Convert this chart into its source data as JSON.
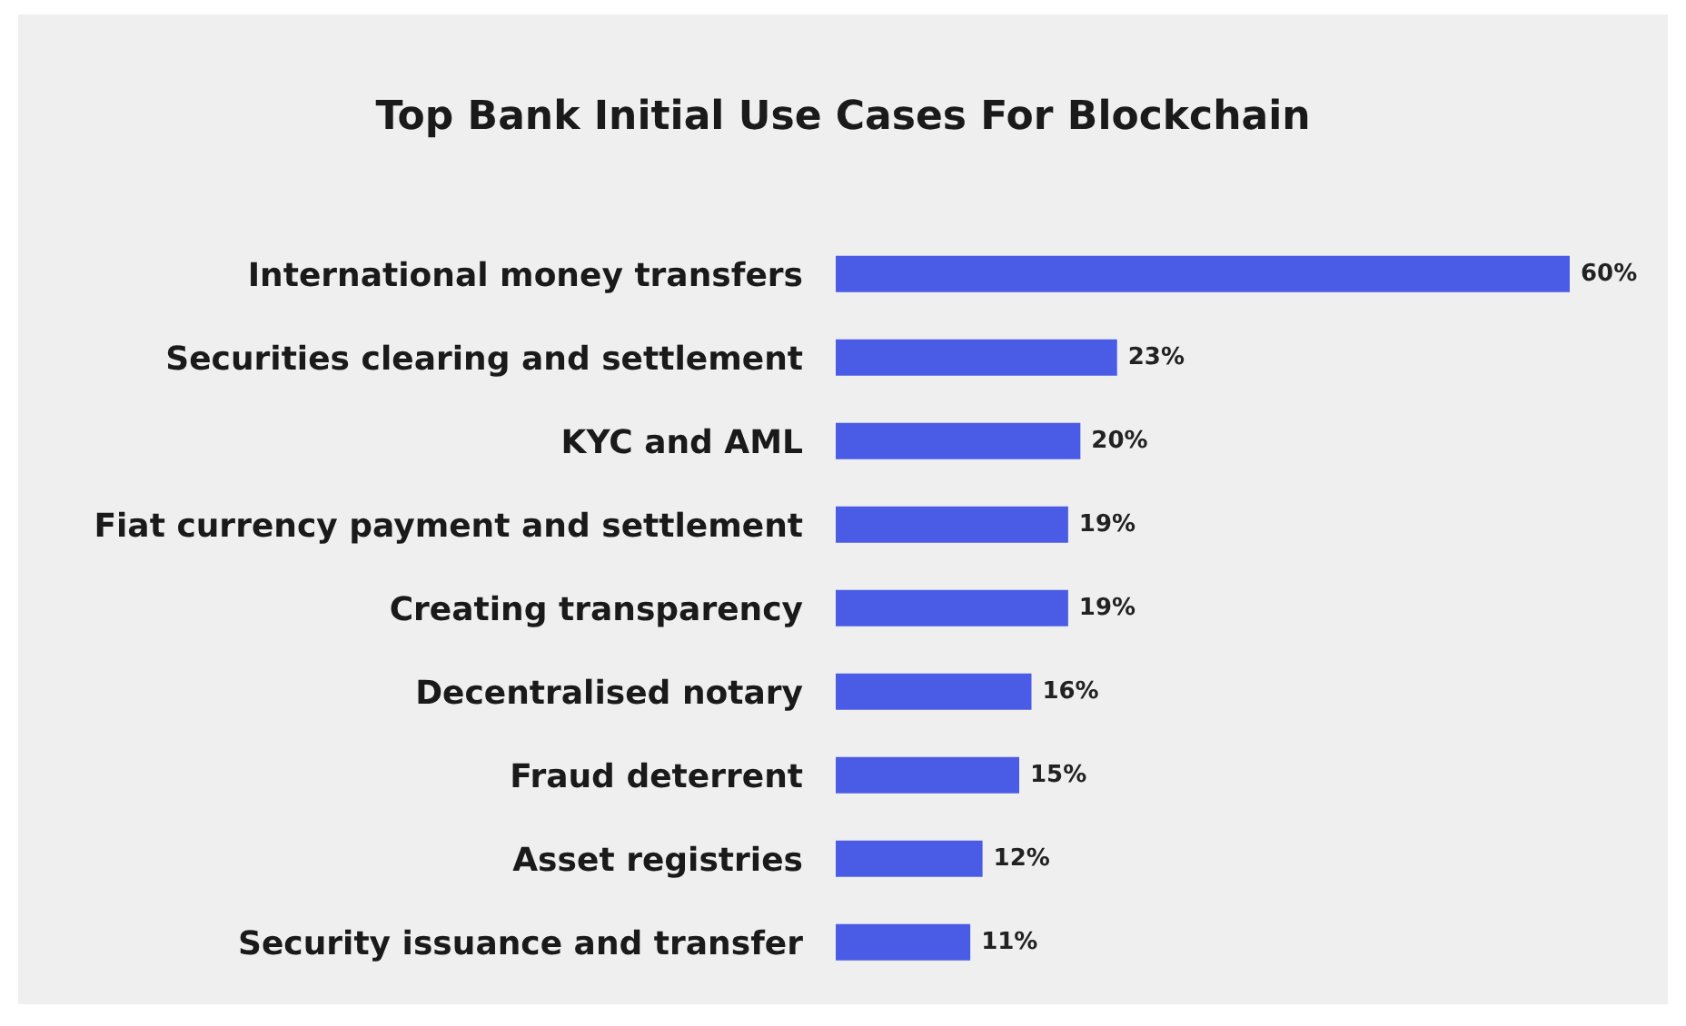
{
  "chart_data": {
    "type": "bar",
    "orientation": "horizontal",
    "title": "Top Bank Initial Use Cases For Blockchain",
    "categories": [
      "International money transfers",
      "Securities clearing and settlement",
      "KYC and AML",
      "Fiat currency payment and settlement",
      "Creating transparency",
      "Decentralised notary",
      "Fraud deterrent",
      "Asset registries",
      "Security issuance and transfer"
    ],
    "values": [
      60,
      23,
      20,
      19,
      19,
      16,
      15,
      12,
      11
    ],
    "value_labels": [
      "60%",
      "23%",
      "20%",
      "19%",
      "19%",
      "16%",
      "15%",
      "12%",
      "11%"
    ],
    "color": "#4a5be6",
    "grid": false,
    "legend": false
  }
}
